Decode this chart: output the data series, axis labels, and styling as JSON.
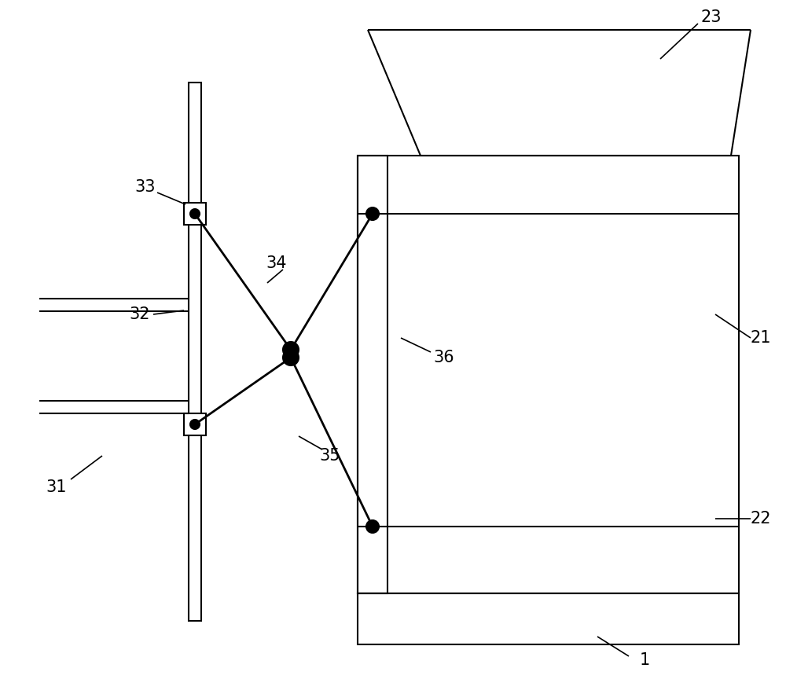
{
  "bg_color": "#ffffff",
  "line_color": "#000000",
  "lw_main": 1.5,
  "lw_thick": 2.0,
  "lw_leader": 1.2,
  "fig_width": 10.0,
  "fig_height": 8.64,
  "dpi": 100
}
